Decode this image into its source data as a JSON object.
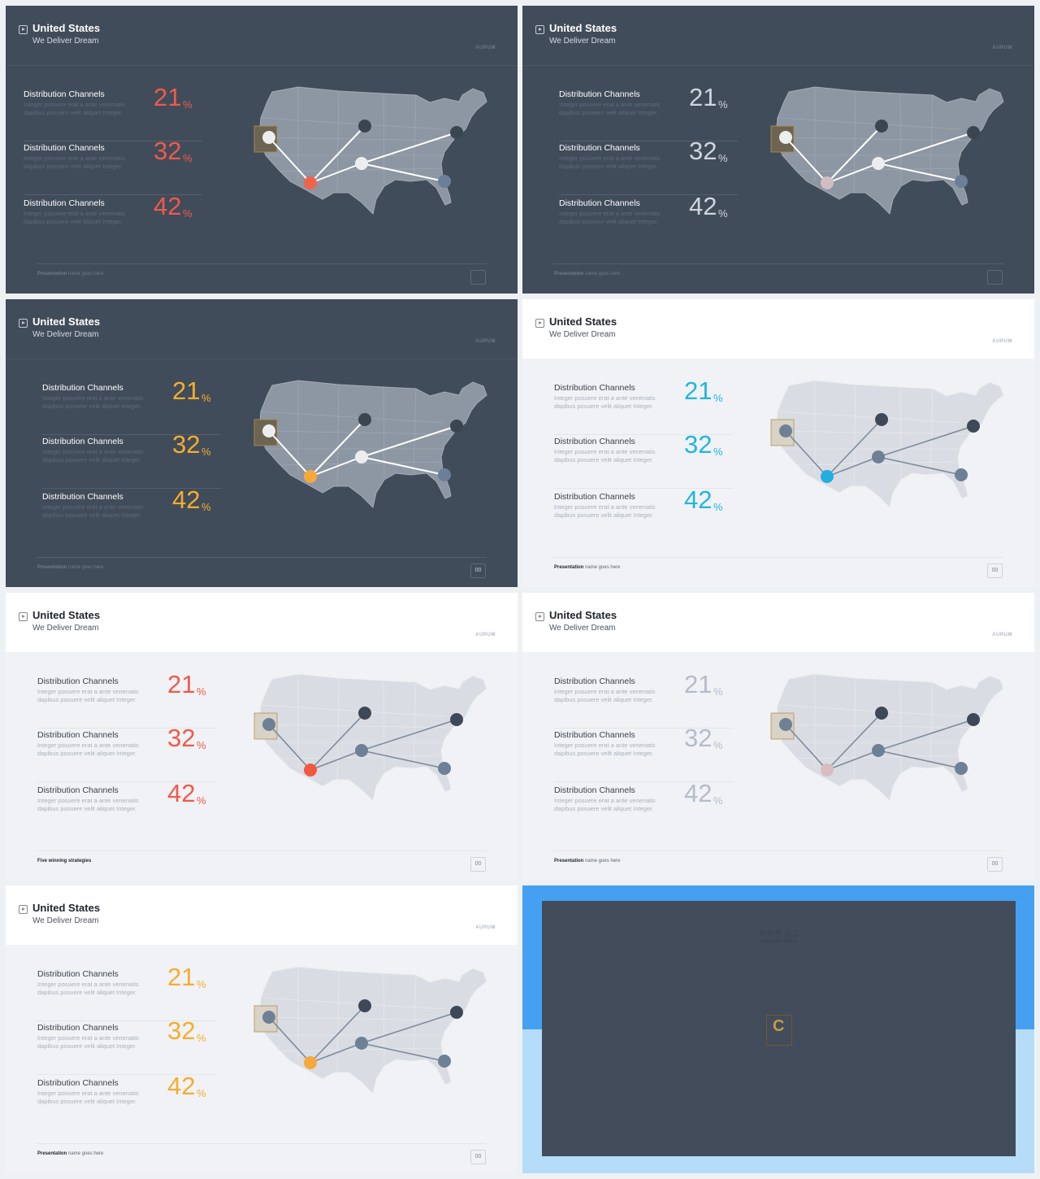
{
  "slides": [
    {
      "theme": "dark",
      "title": "United States",
      "subtitle": "We Deliver Dream",
      "brand": "AURUM",
      "accent": "#ef5a4c",
      "hub_color": "#f26447",
      "stats_left": 22,
      "stats": [
        {
          "label": "Distribution Channels",
          "desc": "Integer posuere erat a ante venenatis dapibus posuere velit aliquet Integer.",
          "value": "21",
          "unit": "%"
        },
        {
          "label": "Distribution Channels",
          "desc": "Integer posuere erat a ante venenatis dapibus posuere velit aliquet Integer.",
          "value": "32",
          "unit": "%"
        },
        {
          "label": "Distribution Channels",
          "desc": "Integer posuere erat a ante venenatis dapibus posuere velit aliquet Integer.",
          "value": "42",
          "unit": "%"
        }
      ],
      "footer_bold": "Presentation",
      "footer_text": " name goes here",
      "page_number": ""
    },
    {
      "theme": "dark",
      "title": "United States",
      "subtitle": "We Deliver Dream",
      "brand": "AURUM",
      "accent": "#cfd5dd",
      "hub_color": "#d3bcc2",
      "stats_left": 45,
      "stats": [
        {
          "label": "Distribution Channels",
          "desc": "Integer posuere erat a ante venenatis dapibus posuere velit aliquet Integer.",
          "value": "21",
          "unit": "%"
        },
        {
          "label": "Distribution Channels",
          "desc": "Integer posuere erat a ante venenatis dapibus posuere velit aliquet Integer.",
          "value": "32",
          "unit": "%"
        },
        {
          "label": "Distribution Channels",
          "desc": "Integer posuere erat a ante venenatis dapibus posuere velit aliquet Integer.",
          "value": "42",
          "unit": "%"
        }
      ],
      "footer_bold": "Presentation",
      "footer_text": " name goes here",
      "page_number": ""
    },
    {
      "theme": "dark",
      "title": "United States",
      "subtitle": "We Deliver Dream",
      "brand": "AURUM",
      "accent": "#f5ad2e",
      "hub_color": "#f6a93b",
      "stats_left": 45,
      "stats": [
        {
          "label": "Distribution Channels",
          "desc": "Integer posuere erat a ante venenatis dapibus posuere velit aliquet Integer.",
          "value": "21",
          "unit": "%"
        },
        {
          "label": "Distribution Channels",
          "desc": "Integer posuere erat a ante venenatis dapibus posuere velit aliquet Integer.",
          "value": "32",
          "unit": "%"
        },
        {
          "label": "Distribution Channels",
          "desc": "Integer posuere erat a ante venenatis dapibus posuere velit aliquet Integer.",
          "value": "42",
          "unit": "%"
        }
      ],
      "footer_bold": "Presentation",
      "footer_text": " name goes here",
      "page_number": "00"
    },
    {
      "theme": "light",
      "title": "United States",
      "subtitle": "We Deliver Dream",
      "brand": "AURUM",
      "accent": "#1fb6e0",
      "hub_color": "#21aee0",
      "stats_left": 39,
      "stats": [
        {
          "label": "Distribution Channels",
          "desc": "Integer posuere erat a ante venenatis dapibus posuere velit aliquet Integer.",
          "value": "21",
          "unit": "%"
        },
        {
          "label": "Distribution Channels",
          "desc": "Integer posuere erat a ante venenatis dapibus posuere velit aliquet Integer.",
          "value": "32",
          "unit": "%"
        },
        {
          "label": "Distribution Channels",
          "desc": "Integer posuere erat a ante venenatis dapibus posuere velit aliquet Integer.",
          "value": "42",
          "unit": "%"
        }
      ],
      "footer_bold": "Presentation",
      "footer_text": " name goes here",
      "page_number": "00"
    },
    {
      "theme": "light",
      "title": "United States",
      "subtitle": "We Deliver Dream",
      "brand": "AURUM",
      "accent": "#ef5a4c",
      "hub_color": "#f0593f",
      "stats_left": 39,
      "stats": [
        {
          "label": "Distribution Channels",
          "desc": "Integer posuere erat a ante venenatis dapibus posuere velit aliquet Integer.",
          "value": "21",
          "unit": "%"
        },
        {
          "label": "Distribution Channels",
          "desc": "Integer posuere erat a ante venenatis dapibus posuere velit aliquet Integer.",
          "value": "32",
          "unit": "%"
        },
        {
          "label": "Distribution Channels",
          "desc": "Integer posuere erat a ante venenatis dapibus posuere velit aliquet Integer.",
          "value": "42",
          "unit": "%"
        }
      ],
      "footer_bold": "Five winning strategies",
      "footer_text": "",
      "page_number": "00"
    },
    {
      "theme": "light",
      "title": "United States",
      "subtitle": "We Deliver Dream",
      "brand": "AURUM",
      "accent": "#b4bccb",
      "hub_color": "#d8bcc0",
      "stats_left": 39,
      "stats": [
        {
          "label": "Distribution Channels",
          "desc": "Integer posuere erat a ante venenatis dapibus posuere velit aliquet Integer.",
          "value": "21",
          "unit": "%"
        },
        {
          "label": "Distribution Channels",
          "desc": "Integer posuere erat a ante venenatis dapibus posuere velit aliquet Integer.",
          "value": "32",
          "unit": "%"
        },
        {
          "label": "Distribution Channels",
          "desc": "Integer posuere erat a ante venenatis dapibus posuere velit aliquet Integer.",
          "value": "42",
          "unit": "%"
        }
      ],
      "footer_bold": "Presentation",
      "footer_text": " name goes here",
      "page_number": "00"
    },
    {
      "theme": "light",
      "title": "United States",
      "subtitle": "We Deliver Dream",
      "brand": "AURUM",
      "accent": "#f5ad2e",
      "hub_color": "#f6a93b",
      "stats_left": 39,
      "stats": [
        {
          "label": "Distribution Channels",
          "desc": "Integer posuere erat a ante venenatis dapibus posuere velit aliquet Integer.",
          "value": "21",
          "unit": "%"
        },
        {
          "label": "Distribution Channels",
          "desc": "Integer posuere erat a ante venenatis dapibus posuere velit aliquet Integer.",
          "value": "32",
          "unit": "%"
        },
        {
          "label": "Distribution Channels",
          "desc": "Integer posuere erat a ante venenatis dapibus posuere velit aliquet Integer.",
          "value": "42",
          "unit": "%"
        }
      ],
      "footer_bold": "Presentation",
      "footer_text": " name goes here",
      "page_number": "00"
    }
  ],
  "copyright": {
    "title": "저작권 공고",
    "subtitle": "Copyright Notice",
    "logo_letter": "C"
  }
}
